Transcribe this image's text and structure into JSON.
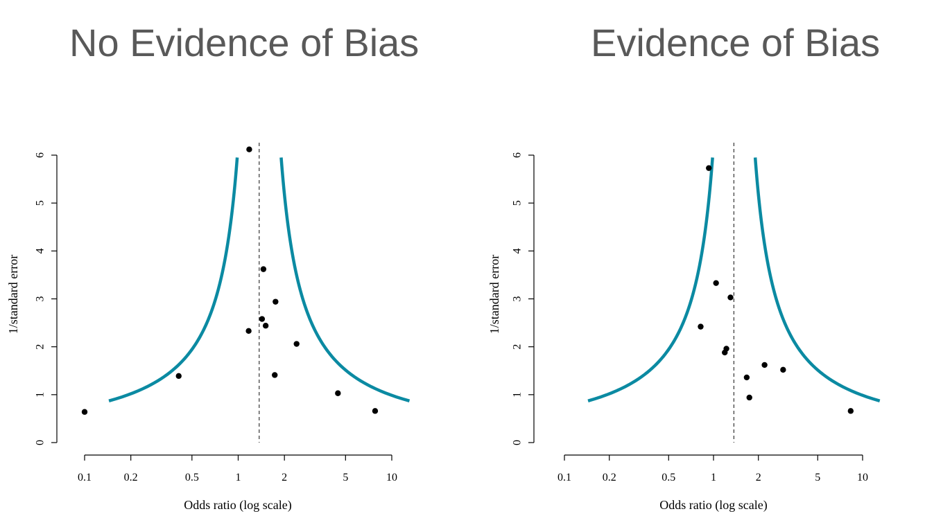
{
  "slide": {
    "left_title": "No Evidence of Bias",
    "right_title": "Evidence of Bias"
  },
  "colors": {
    "funnel": "#0b8aa2",
    "points": "#000000",
    "axis": "#000000"
  },
  "chart_data": [
    {
      "type": "scatter",
      "title": "No Evidence of Bias",
      "xlabel": "Odds ratio (log scale)",
      "ylabel": "1/standard error",
      "x_scale": "log",
      "x_ticks": [
        0.1,
        0.2,
        0.5,
        1,
        2,
        5,
        10
      ],
      "x_tick_labels": [
        "0.1",
        "0.2",
        "0.5",
        "1",
        "2",
        "5",
        "10"
      ],
      "y_ticks": [
        0,
        1,
        2,
        3,
        4,
        5,
        6
      ],
      "y_tick_labels": [
        "0",
        "1",
        "2",
        "3",
        "4",
        "5",
        "6"
      ],
      "xlim": [
        0.1,
        10
      ],
      "ylim": [
        0,
        6
      ],
      "pooled_odds_ratio": 1.37,
      "funnel_z": 1.96,
      "funnel_y_range": [
        0.87,
        5.95
      ],
      "grid": false,
      "points": [
        {
          "x": 0.1,
          "y": 0.64
        },
        {
          "x": 0.41,
          "y": 1.39
        },
        {
          "x": 1.18,
          "y": 6.12
        },
        {
          "x": 1.17,
          "y": 2.33
        },
        {
          "x": 1.46,
          "y": 3.62
        },
        {
          "x": 1.43,
          "y": 2.58
        },
        {
          "x": 1.51,
          "y": 2.44
        },
        {
          "x": 1.75,
          "y": 2.94
        },
        {
          "x": 1.73,
          "y": 1.41
        },
        {
          "x": 2.4,
          "y": 2.06
        },
        {
          "x": 4.46,
          "y": 1.03
        },
        {
          "x": 7.79,
          "y": 0.66
        }
      ]
    },
    {
      "type": "scatter",
      "title": "Evidence of Bias",
      "xlabel": "Odds ratio (log scale)",
      "ylabel": "1/standard error",
      "x_scale": "log",
      "x_ticks": [
        0.1,
        0.2,
        0.5,
        1,
        2,
        5,
        10
      ],
      "x_tick_labels": [
        "0.1",
        "0.2",
        "0.5",
        "1",
        "2",
        "5",
        "10"
      ],
      "y_ticks": [
        0,
        1,
        2,
        3,
        4,
        5,
        6
      ],
      "y_tick_labels": [
        "0",
        "1",
        "2",
        "3",
        "4",
        "5",
        "6"
      ],
      "xlim": [
        0.1,
        10
      ],
      "ylim": [
        0,
        6
      ],
      "pooled_odds_ratio": 1.37,
      "funnel_z": 1.96,
      "funnel_y_range": [
        0.87,
        5.95
      ],
      "grid": false,
      "points": [
        {
          "x": 0.93,
          "y": 5.73
        },
        {
          "x": 1.04,
          "y": 3.33
        },
        {
          "x": 1.3,
          "y": 3.03
        },
        {
          "x": 0.82,
          "y": 2.42
        },
        {
          "x": 1.22,
          "y": 1.96
        },
        {
          "x": 1.19,
          "y": 1.88
        },
        {
          "x": 2.2,
          "y": 1.62
        },
        {
          "x": 2.93,
          "y": 1.52
        },
        {
          "x": 1.67,
          "y": 1.36
        },
        {
          "x": 1.74,
          "y": 0.94
        },
        {
          "x": 8.32,
          "y": 0.66
        }
      ]
    }
  ]
}
